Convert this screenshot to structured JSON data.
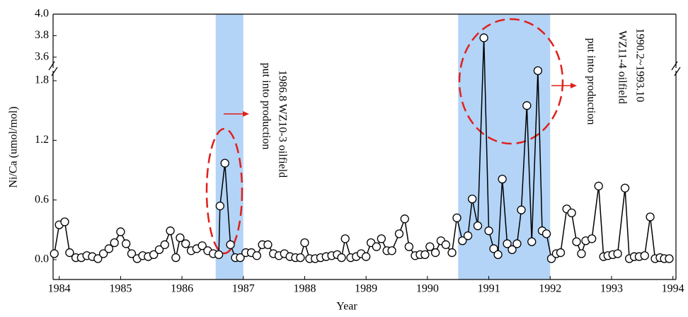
{
  "chart_data": {
    "type": "line",
    "x_label": "Year",
    "y_label": "Ni/Ca (umol/mol)",
    "xlim": [
      1983.9,
      1994.05
    ],
    "xticks": [
      1984,
      1985,
      1986,
      1987,
      1988,
      1989,
      1990,
      1991,
      1992,
      1993,
      1994
    ],
    "ylim": [
      -0.2,
      1.9
    ],
    "yticks": [
      {
        "value": 0,
        "label": "0.0"
      },
      0.6,
      1.2,
      1.8
    ],
    "ylim_upper": [
      3.5,
      4.0
    ],
    "yticks_upper": [
      3.6,
      3.8,
      {
        "value": 4,
        "label": "4.0"
      }
    ],
    "color": "#000000",
    "highlight_color": "#b3d4f7",
    "highlights": [
      [
        1986.55,
        1987.0
      ],
      [
        1990.5,
        1992.0
      ]
    ],
    "annotations": [
      {
        "lines": [
          "1986.8 WZ10-3 oilfield",
          "put into production"
        ]
      },
      {
        "lines": [
          "1990.2~1993.10",
          "WZ11-4 oilfield",
          "put into production"
        ]
      }
    ],
    "x": [
      1983.92,
      1984.0,
      1984.09,
      1984.17,
      1984.27,
      1984.36,
      1984.45,
      1984.54,
      1984.63,
      1984.72,
      1984.81,
      1984.9,
      1985.0,
      1985.09,
      1985.18,
      1985.27,
      1985.36,
      1985.45,
      1985.54,
      1985.63,
      1985.72,
      1985.81,
      1985.9,
      1985.97,
      1986.06,
      1986.15,
      1986.24,
      1986.33,
      1986.42,
      1986.51,
      1986.6,
      1986.62,
      1986.7,
      1986.79,
      1986.87,
      1986.95,
      1987.04,
      1987.13,
      1987.22,
      1987.31,
      1987.4,
      1987.49,
      1987.58,
      1987.67,
      1987.76,
      1987.85,
      1987.93,
      1988.0,
      1988.08,
      1988.17,
      1988.26,
      1988.35,
      1988.44,
      1988.53,
      1988.6,
      1988.66,
      1988.75,
      1988.84,
      1988.92,
      1989.0,
      1989.08,
      1989.17,
      1989.25,
      1989.34,
      1989.42,
      1989.54,
      1989.63,
      1989.7,
      1989.8,
      1989.88,
      1989.96,
      1990.04,
      1990.13,
      1990.22,
      1990.3,
      1990.4,
      1990.48,
      1990.57,
      1990.66,
      1990.73,
      1990.82,
      1990.92,
      1991.0,
      1991.08,
      1991.15,
      1991.22,
      1991.3,
      1991.38,
      1991.46,
      1991.53,
      1991.62,
      1991.7,
      1991.8,
      1991.87,
      1991.94,
      1992.02,
      1992.1,
      1992.17,
      1992.27,
      1992.35,
      1992.43,
      1992.51,
      1992.58,
      1992.68,
      1992.79,
      1992.87,
      1992.94,
      1993.02,
      1993.1,
      1993.22,
      1993.29,
      1993.37,
      1993.45,
      1993.54,
      1993.63,
      1993.71,
      1993.79,
      1993.86,
      1993.94
    ],
    "values": [
      0.06,
      0.35,
      0.38,
      0.07,
      0.02,
      0.02,
      0.04,
      0.03,
      0.01,
      0.06,
      0.11,
      0.17,
      0.28,
      0.16,
      0.06,
      0.01,
      0.04,
      0.03,
      0.05,
      0.1,
      0.15,
      0.29,
      0.02,
      0.22,
      0.16,
      0.09,
      0.11,
      0.14,
      0.09,
      0.06,
      0.05,
      0.54,
      0.97,
      0.15,
      0.02,
      0.02,
      0.07,
      0.07,
      0.04,
      0.15,
      0.15,
      0.06,
      0.04,
      0.06,
      0.03,
      0.02,
      0.02,
      0.17,
      0.01,
      0.01,
      0.02,
      0.03,
      0.04,
      0.05,
      0.02,
      0.21,
      0.02,
      0.03,
      0.06,
      0.03,
      0.17,
      0.13,
      0.21,
      0.09,
      0.09,
      0.26,
      0.41,
      0.13,
      0.04,
      0.05,
      0.05,
      0.13,
      0.07,
      0.19,
      0.15,
      0.07,
      0.42,
      0.19,
      0.24,
      0.61,
      0.34,
      3.78,
      0.29,
      0.11,
      0.05,
      0.81,
      0.16,
      0.1,
      0.16,
      0.5,
      1.55,
      0.18,
      1.95,
      0.29,
      0.26,
      0.01,
      0.06,
      0.07,
      0.51,
      0.47,
      0.18,
      0.06,
      0.19,
      0.21,
      0.74,
      0.03,
      0.04,
      0.05,
      0.06,
      0.72,
      0.01,
      0.03,
      0.03,
      0.04,
      0.43,
      0.01,
      0.02,
      0.01,
      0.01
    ]
  }
}
